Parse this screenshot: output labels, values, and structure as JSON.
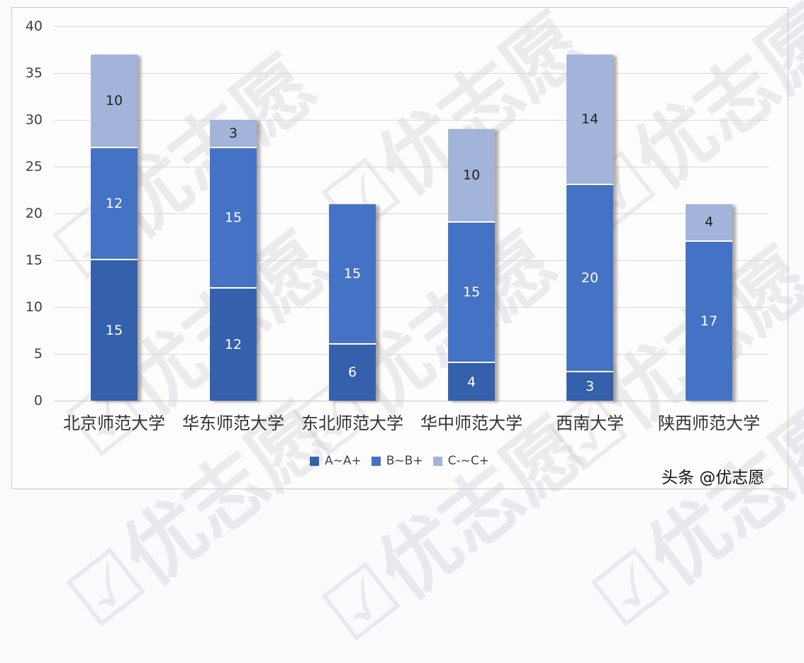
{
  "chart_data": {
    "type": "bar",
    "stacked": true,
    "title": "",
    "xlabel": "",
    "ylabel": "",
    "ylim": [
      0,
      40
    ],
    "yticks": [
      0,
      5,
      10,
      15,
      20,
      25,
      30,
      35,
      40
    ],
    "grid": true,
    "legend_position": "bottom",
    "categories": [
      "北京师范大学",
      "华东师范大学",
      "东北师范大学",
      "华中师范大学",
      "西南大学",
      "陕西师范大学"
    ],
    "series": [
      {
        "name": "A~A+",
        "color": "#3460ac",
        "values": [
          15,
          12,
          6,
          4,
          3,
          0
        ]
      },
      {
        "name": "B~B+",
        "color": "#4472c4",
        "values": [
          12,
          15,
          15,
          15,
          20,
          17
        ]
      },
      {
        "name": "C-~C+",
        "color": "#a2b4da",
        "values": [
          10,
          3,
          0,
          10,
          14,
          4
        ]
      }
    ],
    "totals": [
      37,
      30,
      21,
      29,
      37,
      21
    ]
  },
  "yaxis": {
    "ticks": [
      "0",
      "5",
      "10",
      "15",
      "20",
      "25",
      "30",
      "35",
      "40"
    ]
  },
  "xaxis": {
    "labels": [
      "北京师范大学",
      "华东师范大学",
      "东北师范大学",
      "华中师范大学",
      "西南大学",
      "陕西师范大学"
    ]
  },
  "legend": {
    "items": [
      {
        "label": "A~A+",
        "color": "#3460ac"
      },
      {
        "label": "B~B+",
        "color": "#4472c4"
      },
      {
        "label": "C-~C+",
        "color": "#a2b4da"
      }
    ]
  },
  "watermark": {
    "text": "优志愿"
  },
  "credit": {
    "text": "头条 @优志愿"
  }
}
